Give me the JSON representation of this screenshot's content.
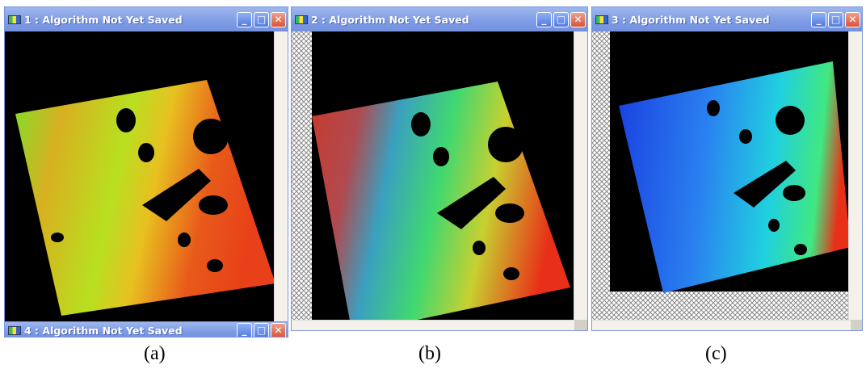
{
  "windows": [
    {
      "title": "1 : Algorithm Not Yet Saved"
    },
    {
      "title": "2 : Algorithm Not Yet Saved"
    },
    {
      "title": "3 : Algorithm Not Yet Saved"
    },
    {
      "title": "4 : Algorithm Not Yet Saved"
    }
  ],
  "captions": [
    "(a)",
    "(b)",
    "(c)"
  ]
}
